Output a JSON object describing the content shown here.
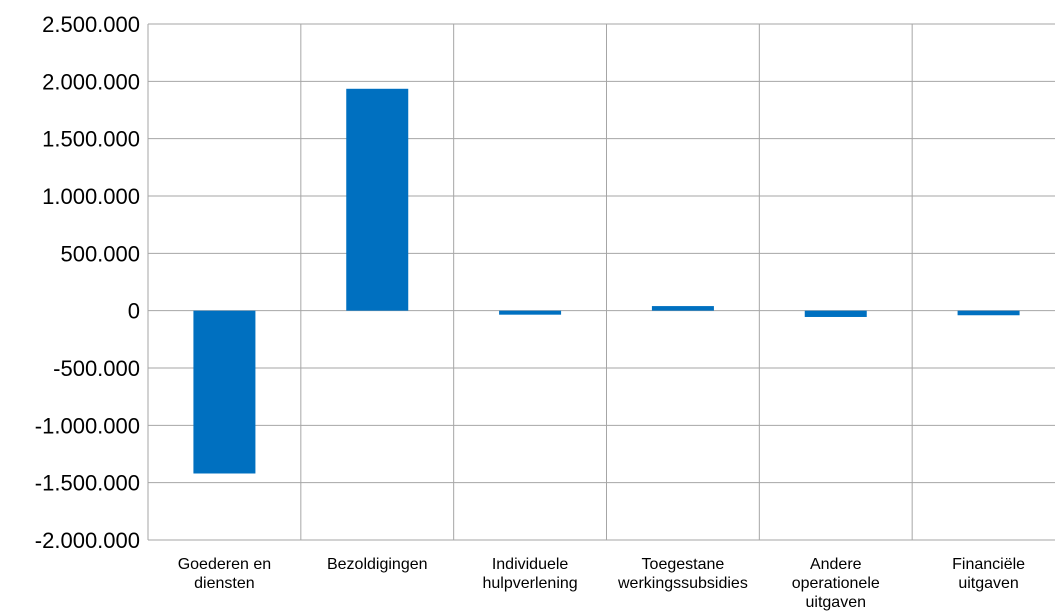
{
  "chart_data": {
    "type": "bar",
    "title": "",
    "xlabel": "",
    "ylabel": "",
    "categories": [
      [
        "Goederen en",
        "diensten"
      ],
      [
        "Bezoldigingen"
      ],
      [
        "Individuele",
        "hulpverlening"
      ],
      [
        "Toegestane",
        "werkingssubsidies"
      ],
      [
        "Andere",
        "operationele",
        "uitgaven"
      ],
      [
        "Financiële",
        "uitgaven"
      ]
    ],
    "values": [
      -1420000,
      1935000,
      -35000,
      40000,
      -55000,
      -40000
    ],
    "ylim": [
      -2000000,
      2500000
    ],
    "yticks": [
      2500000,
      2000000,
      1500000,
      1000000,
      500000,
      0,
      -500000,
      -1000000,
      -1500000,
      -2000000
    ],
    "ytick_labels": [
      "2.500.000",
      "2.000.000",
      "1.500.000",
      "1.000.000",
      "500.000",
      "0",
      "-500.000",
      "-1.000.000",
      "-1.500.000",
      "-2.000.000"
    ],
    "bar_color": "#0070C0",
    "grid": true,
    "legend": "none"
  }
}
